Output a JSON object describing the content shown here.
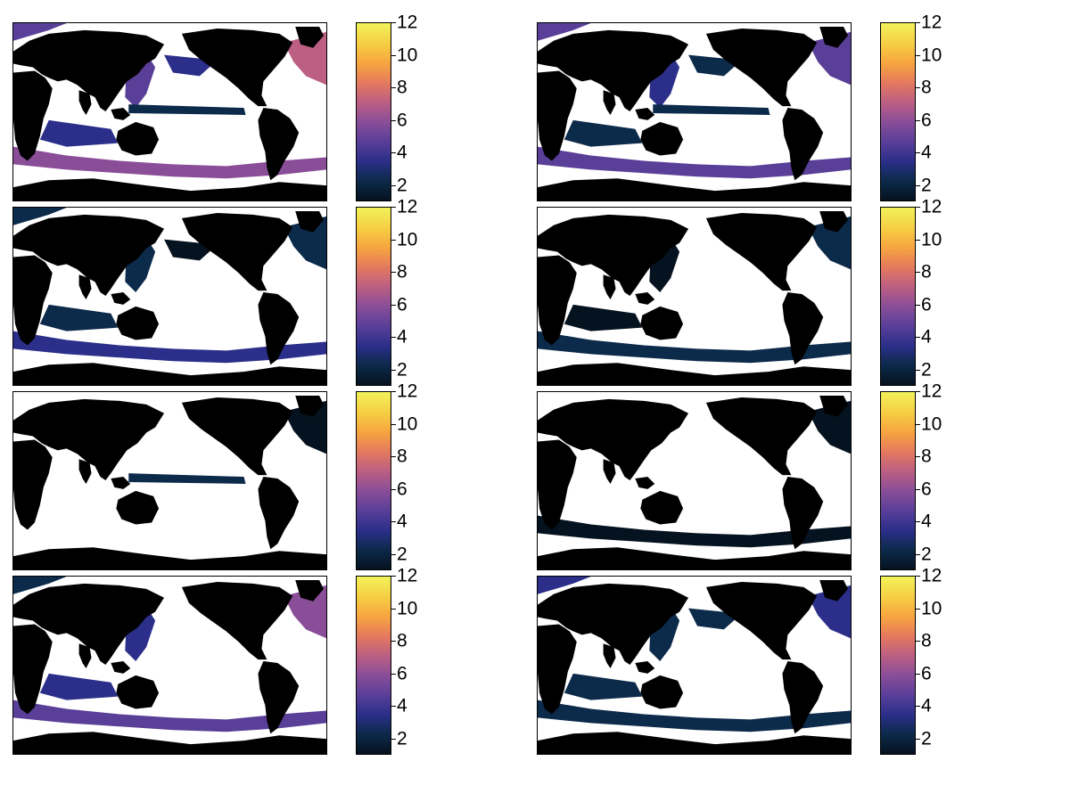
{
  "figure": {
    "panel_count": 8,
    "grid": "4 rows x 2 columns",
    "map": {
      "projection": "global, Pacific-centered",
      "land_color": "#000000",
      "no_data_color": "#ffffff"
    },
    "colorbar": {
      "min": 1,
      "max": 12,
      "tick_labels": [
        "12",
        "10",
        "8",
        "6",
        "4",
        "2"
      ],
      "colormap": [
        "#05121f",
        "#0c2a4a",
        "#2b2f8a",
        "#5a3f98",
        "#8a4e98",
        "#bd5f82",
        "#e57a5d",
        "#f7a63f",
        "#f6d044",
        "#f2f25a"
      ]
    }
  },
  "chart_data": {
    "type": "heatmap",
    "panels": [
      {
        "id": 1,
        "row": 1,
        "col": 1,
        "coverage": "extensive",
        "max_level": 8
      },
      {
        "id": 2,
        "row": 1,
        "col": 2,
        "coverage": "extensive",
        "max_level": 5
      },
      {
        "id": 3,
        "row": 2,
        "col": 1,
        "coverage": "moderate",
        "max_level": 4
      },
      {
        "id": 4,
        "row": 2,
        "col": 2,
        "coverage": "moderate",
        "max_level": 2
      },
      {
        "id": 5,
        "row": 3,
        "col": 1,
        "coverage": "sparse",
        "max_level": 2
      },
      {
        "id": 6,
        "row": 3,
        "col": 2,
        "coverage": "sparse",
        "max_level": 2
      },
      {
        "id": 7,
        "row": 4,
        "col": 1,
        "coverage": "moderate",
        "max_level": 6
      },
      {
        "id": 8,
        "row": 4,
        "col": 2,
        "coverage": "extensive",
        "max_level": 3
      }
    ],
    "colorbar_range": [
      1,
      12
    ]
  }
}
